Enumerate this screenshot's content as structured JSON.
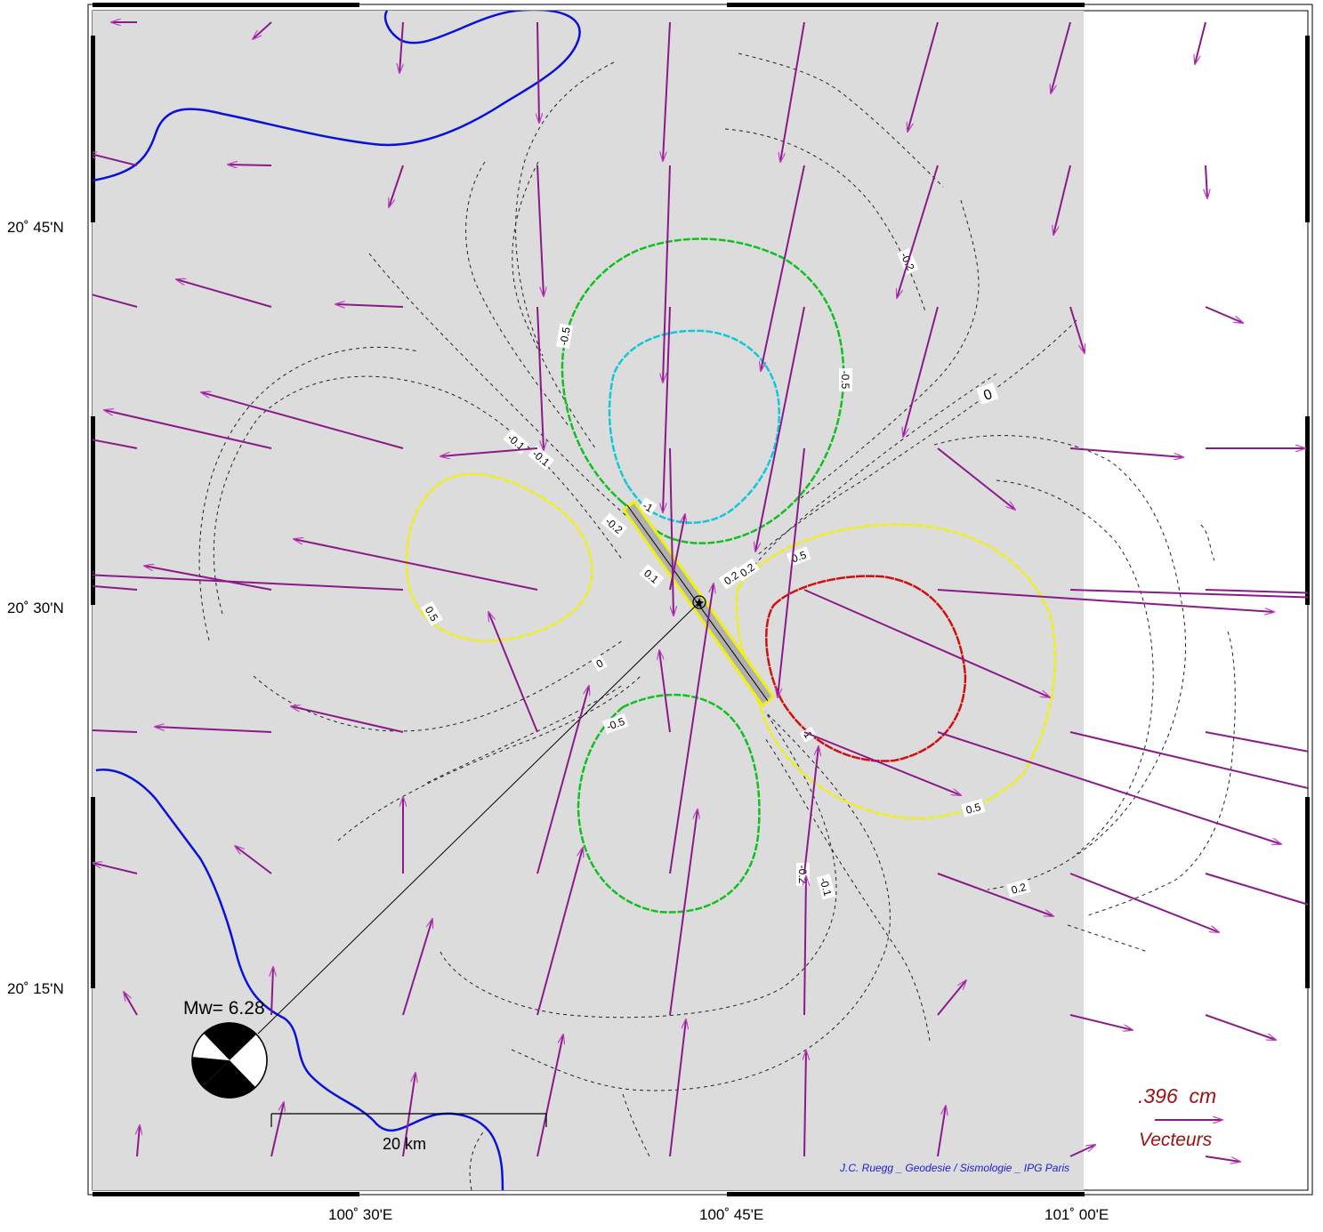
{
  "axes": {
    "lat_labels": [
      "20˚ 45'N",
      "20˚ 30'N",
      "20˚ 15'N"
    ],
    "lon_labels": [
      "100˚ 30'E",
      "100˚ 45'E",
      "101˚ 00'E"
    ]
  },
  "event": {
    "magnitude_label": "Mw= 6.28"
  },
  "scale_bar": {
    "label": "20 km"
  },
  "vector_legend": {
    "value": ".396  cm",
    "label": "Vecteurs"
  },
  "credit": "J.C. Ruegg _ Geodesie / Sismologie _ IPG Paris",
  "contour_labels": [
    "-0.5",
    "-0.5",
    "-1",
    "-0.5",
    "0.5",
    "0.5",
    "1",
    "0.5",
    "0.2",
    "-0.2",
    "-0.1",
    "-0.1",
    "-0.2",
    "0",
    "0.2",
    "-0.2",
    "-0.1",
    "0.1",
    "0.2",
    "0"
  ],
  "colors": {
    "background": "#dcdcdc",
    "river": "#0a12d8",
    "vector": "#8a1a8a",
    "contour_neg_05": "#10c020",
    "contour_neg_1": "#10c8d8",
    "contour_pos_05": "#f0f010",
    "contour_pos_1": "#d01010",
    "fault_outline": "#f0f010",
    "legend_text": "#a01010",
    "credit_text": "#1a1ad8"
  },
  "icons": [
    "epicenter-star-icon",
    "focal-mechanism-beachball-icon"
  ]
}
